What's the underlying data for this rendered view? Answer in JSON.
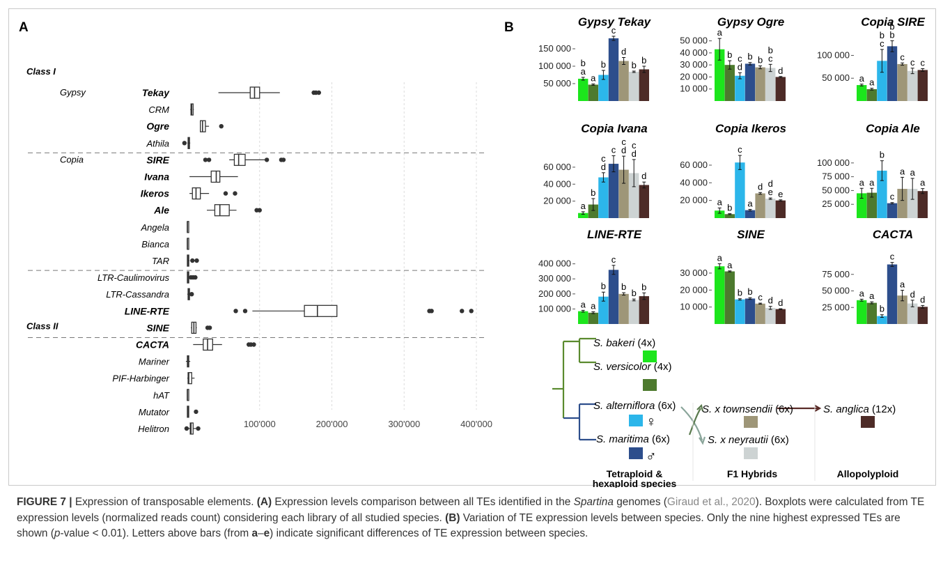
{
  "panel_a": {
    "label": "A",
    "groups": [
      {
        "name": "Class I",
        "rows": [
          {
            "sub": "Gypsy",
            "name": "Tekay",
            "bold": true,
            "q1": 87000,
            "med": 93000,
            "q3": 100000,
            "wlo": 43000,
            "whi": 128000,
            "out": [
              175000,
              178000,
              182000
            ]
          },
          {
            "sub": "",
            "name": "CRM",
            "bold": false,
            "q1": 5000,
            "med": 6000,
            "q3": 8000,
            "wlo": 4000,
            "whi": 9000,
            "out": []
          },
          {
            "sub": "",
            "name": "Ogre",
            "bold": true,
            "q1": 18000,
            "med": 21000,
            "q3": 25000,
            "wlo": 18000,
            "whi": 30000,
            "out": [
              47000
            ]
          },
          {
            "sub": "",
            "name": "Athila",
            "bold": false,
            "q1": 1000,
            "med": 2000,
            "q3": 3000,
            "wlo": 0,
            "whi": 4000,
            "out": [
              -4000
            ]
          }
        ]
      },
      {
        "name": "",
        "rows": [
          {
            "sub": "Copia",
            "name": "SIRE",
            "bold": true,
            "q1": 65000,
            "med": 71000,
            "q3": 80000,
            "wlo": 58000,
            "whi": 110000,
            "out": [
              25000,
              30000,
              110000,
              130000,
              133000
            ]
          },
          {
            "sub": "",
            "name": "Ivana",
            "bold": true,
            "q1": 33000,
            "med": 40000,
            "q3": 45000,
            "wlo": 3000,
            "whi": 70000,
            "out": []
          },
          {
            "sub": "",
            "name": "Ikeros",
            "bold": true,
            "q1": 7000,
            "med": 12000,
            "q3": 18000,
            "wlo": 3000,
            "whi": 30000,
            "out": [
              53000,
              66000
            ]
          },
          {
            "sub": "",
            "name": "Ale",
            "bold": true,
            "q1": 38000,
            "med": 45000,
            "q3": 58000,
            "wlo": 27000,
            "whi": 68000,
            "out": [
              96000,
              100000
            ]
          },
          {
            "sub": "",
            "name": "Angela",
            "bold": false,
            "q1": 0,
            "med": 0,
            "q3": 1000,
            "wlo": 0,
            "whi": 1000,
            "out": []
          },
          {
            "sub": "",
            "name": "Bianca",
            "bold": false,
            "q1": 0,
            "med": 0,
            "q3": 1000,
            "wlo": 0,
            "whi": 1000,
            "out": []
          },
          {
            "sub": "",
            "name": "TAR",
            "bold": false,
            "q1": 0,
            "med": 1000,
            "q3": 2000,
            "wlo": 0,
            "whi": 3000,
            "out": [
              7000,
              13000
            ]
          }
        ]
      },
      {
        "name": "",
        "rows": [
          {
            "sub": "",
            "name": "LTR-Caulimovirus",
            "bold": false,
            "q1": 0,
            "med": 1000,
            "q3": 2000,
            "wlo": 0,
            "whi": 3000,
            "out": [
              5000,
              8000,
              11000
            ]
          },
          {
            "sub": "",
            "name": "LTR-Cassandra",
            "bold": false,
            "q1": 1000,
            "med": 2000,
            "q3": 3000,
            "wlo": 0,
            "whi": 4000,
            "out": [
              6000
            ]
          },
          {
            "sub": "",
            "name": "LINE-RTE",
            "bold": true,
            "q1": 162000,
            "med": 180000,
            "q3": 207000,
            "wlo": 90000,
            "whi": 207000,
            "out": [
              67000,
              80000,
              335000,
              338000,
              380000,
              393000
            ]
          },
          {
            "sub": "",
            "name": "SINE",
            "bold": true,
            "q1": 6000,
            "med": 9000,
            "q3": 12000,
            "wlo": 5000,
            "whi": 13000,
            "out": [
              28000,
              31000
            ]
          }
        ]
      },
      {
        "name": "Class II",
        "rows": [
          {
            "sub": "",
            "name": "CACTA",
            "bold": true,
            "q1": 22000,
            "med": 28000,
            "q3": 35000,
            "wlo": 8000,
            "whi": 48000,
            "out": [
              85000,
              88000,
              92000
            ]
          },
          {
            "sub": "",
            "name": "Mariner",
            "bold": false,
            "q1": 0,
            "med": 1000,
            "q3": 2000,
            "wlo": -2000,
            "whi": 4000,
            "out": []
          },
          {
            "sub": "",
            "name": "PIF-Harbinger",
            "bold": false,
            "q1": 1000,
            "med": 2000,
            "q3": 6000,
            "wlo": 0,
            "whi": 10000,
            "out": []
          },
          {
            "sub": "",
            "name": "hAT",
            "bold": false,
            "q1": 0,
            "med": 0,
            "q3": 1000,
            "wlo": 0,
            "whi": 1000,
            "out": []
          },
          {
            "sub": "",
            "name": "Mutator",
            "bold": false,
            "q1": 0,
            "med": 1000,
            "q3": 1000,
            "wlo": 0,
            "whi": 2000,
            "out": [
              12000
            ]
          },
          {
            "sub": "",
            "name": "Helitron",
            "bold": false,
            "q1": 4000,
            "med": 5000,
            "q3": 8000,
            "wlo": 0,
            "whi": 12000,
            "out": [
              -1000,
              15000
            ]
          }
        ]
      }
    ],
    "ticks": [
      100000,
      200000,
      300000,
      400000
    ],
    "tick_labels": [
      "100'000",
      "200'000",
      "300'000",
      "400'000"
    ]
  },
  "panel_b": {
    "label": "B",
    "colors": [
      "#1ce51c",
      "#4d7a2e",
      "#2cb6ea",
      "#2d4e8c",
      "#9e9678",
      "#cdd3d3",
      "#4d2b27"
    ],
    "panels": [
      {
        "title": "Gypsy Tekay",
        "ymax": 190000,
        "ticks": [
          50000,
          100000,
          150000
        ],
        "tick_labels": [
          "50 000",
          "100 000",
          "150 000"
        ],
        "values": [
          64000,
          47000,
          75000,
          180000,
          115000,
          84000,
          91000
        ],
        "errors": [
          4000,
          2000,
          13000,
          6000,
          10000,
          2000,
          9000
        ],
        "letters": [
          "b\na",
          "a",
          "b",
          "c",
          "d",
          "b",
          "b"
        ]
      },
      {
        "title": "Gypsy Ogre",
        "ymax": 55000,
        "ticks": [
          10000,
          20000,
          30000,
          40000,
          50000
        ],
        "tick_labels": [
          "10 000",
          "20 000",
          "30 000",
          "40 000",
          "50 000"
        ],
        "values": [
          43000,
          30000,
          21000,
          31000,
          28000,
          27500,
          20000
        ],
        "errors": [
          9000,
          3500,
          2500,
          1000,
          1200,
          3000,
          400
        ],
        "letters": [
          "a",
          "b",
          "c\nd",
          "b",
          "b",
          "b\nc",
          "d"
        ]
      },
      {
        "title": "Copia SIRE",
        "ymax": 145000,
        "ticks": [
          50000,
          100000
        ],
        "tick_labels": [
          "50 000",
          "100 000"
        ],
        "values": [
          35000,
          26000,
          88000,
          120000,
          81000,
          66000,
          68000
        ],
        "errors": [
          2000,
          2000,
          25000,
          12000,
          2500,
          6000,
          3000
        ],
        "letters": [
          "a",
          "a",
          "b\nc",
          "b\nb",
          "c",
          "c",
          "c"
        ]
      },
      {
        "title": "Copia Ivana",
        "ymax": 78000,
        "ticks": [
          20000,
          40000,
          60000
        ],
        "tick_labels": [
          "20 000",
          "40 000",
          "60 000"
        ],
        "values": [
          6000,
          16000,
          48000,
          64000,
          57000,
          53000,
          39000
        ],
        "errors": [
          1500,
          7000,
          5500,
          9500,
          16000,
          16000,
          3500
        ],
        "letters": [
          "a",
          "b",
          "c\nd",
          "c",
          "c\nd",
          "c\nd",
          "d"
        ]
      },
      {
        "title": "Copia Ikeros",
        "ymax": 75000,
        "ticks": [
          20000,
          40000,
          60000
        ],
        "tick_labels": [
          "20 000",
          "40 000",
          "60 000"
        ],
        "values": [
          8500,
          4500,
          63000,
          9000,
          28000,
          22000,
          20000
        ],
        "errors": [
          3000,
          500,
          8000,
          900,
          1000,
          800,
          700
        ],
        "letters": [
          "a",
          "b",
          "c",
          "a",
          "d",
          "d\ne",
          "e"
        ]
      },
      {
        "title": "Copia Ale",
        "ymax": 120000,
        "ticks": [
          25000,
          50000,
          75000,
          100000
        ],
        "tick_labels": [
          "25 000",
          "50 000",
          "75 000",
          "100 000"
        ],
        "values": [
          45000,
          46000,
          86000,
          27000,
          53000,
          53000,
          49000
        ],
        "errors": [
          9000,
          8000,
          18000,
          1200,
          21000,
          19000,
          4500
        ],
        "letters": [
          "a",
          "a",
          "b",
          "c",
          "a",
          "a",
          "a"
        ]
      },
      {
        "title": "LINE-RTE",
        "ymax": 440000,
        "ticks": [
          100000,
          200000,
          300000,
          400000
        ],
        "tick_labels": [
          "100 000",
          "200 000",
          "300 000",
          "400 000"
        ],
        "values": [
          85000,
          75000,
          182000,
          360000,
          200000,
          160000,
          185000
        ],
        "errors": [
          6000,
          6000,
          30000,
          30000,
          8000,
          6000,
          22000
        ],
        "letters": [
          "a",
          "a",
          "b",
          "c",
          "b",
          "b",
          "b"
        ]
      },
      {
        "title": "SINE",
        "ymax": 39000,
        "ticks": [
          10000,
          20000,
          30000
        ],
        "tick_labels": [
          "10 000",
          "20 000",
          "30 000"
        ],
        "values": [
          34000,
          31000,
          14500,
          15000,
          12000,
          9500,
          8800
        ],
        "errors": [
          1500,
          300,
          400,
          500,
          300,
          900,
          200
        ],
        "letters": [
          "a",
          "a",
          "b",
          "b",
          "c",
          "d",
          "d"
        ]
      },
      {
        "title": "CACTA",
        "ymax": 100000,
        "ticks": [
          25000,
          50000,
          75000
        ],
        "tick_labels": [
          "25 000",
          "50 000",
          "75 000"
        ],
        "values": [
          36000,
          32000,
          12000,
          90000,
          43000,
          31000,
          26000
        ],
        "errors": [
          1500,
          1500,
          2000,
          3000,
          8000,
          5000,
          2000
        ],
        "letters": [
          "a",
          "a",
          "b",
          "c",
          "a",
          "d",
          "d"
        ]
      }
    ],
    "legend": {
      "bakeri": "S. bakeri",
      "bakeri_ploidy": "(4x)",
      "versicolor": "S. versicolor",
      "versicolor_ploidy": "(4x)",
      "alterniflora": "S. alterniflora",
      "alterniflora_ploidy": "(6x)",
      "female_symbol": "♀",
      "maritima": "S. maritima",
      "maritima_ploidy": "(6x)",
      "male_symbol": "♂",
      "townsendii": "S. x townsendii",
      "townsendii_ploidy": "(6x)",
      "neyrautii": "S. x neyrautii",
      "neyrautii_ploidy": "(6x)",
      "anglica": "S. anglica",
      "anglica_ploidy": "(12x)",
      "group_parents_line1": "Tetraploid &",
      "group_parents_line2": "hexaploid species",
      "group_f1": "F1 Hybrids",
      "group_allo": "Allopolyploid"
    }
  },
  "caption": {
    "figure_label": "FIGURE 7 |",
    "t1": " Expression of transposable elements. ",
    "a": "(A)",
    "t2": " Expression levels comparison between all TEs identified in the ",
    "genus": "Spartina",
    "t3": " genomes (",
    "citation": "Giraud et al., 2020",
    "t4": "). Boxplots were calculated from TE expression levels (normalized reads count) considering each library of all studied species. ",
    "b": "(B)",
    "t5": " Variation of TE expression levels between species. Only the nine highest expressed TEs are shown (",
    "p": "p",
    "t6": "-value < 0.01). Letters above bars (from ",
    "ae_a": "a",
    "dash": "–",
    "ae_e": "e",
    "t7": ") indicate significant differences of TE expression between species."
  }
}
